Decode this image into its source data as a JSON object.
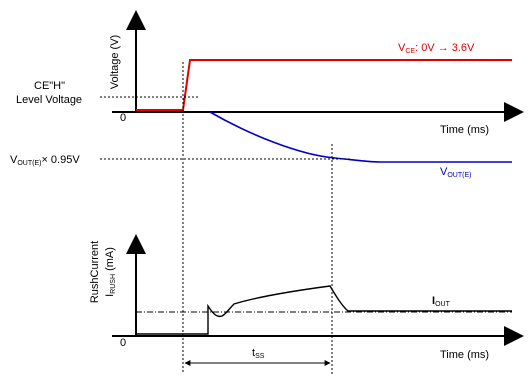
{
  "colors": {
    "axis": "#000000",
    "vce_trace": "#e00000",
    "vout_trace": "#0000cc"
  },
  "top_plot": {
    "ylabel": "Voltage (V)",
    "xlabel": "Time (ms)",
    "origin_label": "0",
    "ce_level_label_line1": "CE\"H\"",
    "ce_level_label_line2": "Level Voltage",
    "vce_main": "V",
    "vce_sub": "CE",
    "vce_rest": ": 0V → 3.6V",
    "vout_main": "V",
    "vout_sub": "OUT(E)",
    "vout95_main": "V",
    "vout95_sub": "OUT(E)",
    "vout95_rest": "× 0.95V"
  },
  "bottom_plot": {
    "ylabel_line1": "RushCurrent",
    "ylabel_main": "I",
    "ylabel_sub": "RUSH",
    "ylabel_rest": " (mA)",
    "xlabel": "Time (ms)",
    "origin_label": "0",
    "iout_main": "I",
    "iout_sub": "OUT",
    "tss_main": "t",
    "tss_sub": "SS"
  }
}
